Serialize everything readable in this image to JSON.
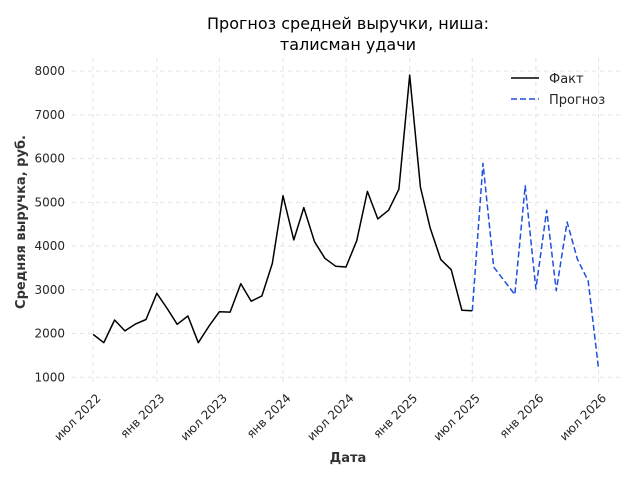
{
  "chart_data": {
    "type": "line",
    "title_lines": [
      "Прогноз средней выручки, ниша:",
      "талисман удачи"
    ],
    "xlabel": "Дата",
    "ylabel": "Средняя выручка, руб.",
    "x_ticks": [
      {
        "date": "2022-07-01",
        "label": "июл 2022"
      },
      {
        "date": "2023-01-01",
        "label": "янв 2023"
      },
      {
        "date": "2023-07-01",
        "label": "июл 2023"
      },
      {
        "date": "2024-01-01",
        "label": "янв 2024"
      },
      {
        "date": "2024-07-01",
        "label": "июл 2024"
      },
      {
        "date": "2025-01-01",
        "label": "янв 2025"
      },
      {
        "date": "2025-07-01",
        "label": "июл 2025"
      },
      {
        "date": "2026-01-01",
        "label": "янв 2026"
      },
      {
        "date": "2026-07-01",
        "label": "июл 2026"
      }
    ],
    "y_ticks": [
      1000,
      2000,
      3000,
      4000,
      5000,
      6000,
      7000,
      8000
    ],
    "xlim": [
      "2022-05-01",
      "2026-09-01"
    ],
    "ylim": [
      800,
      8300
    ],
    "grid": true,
    "legend_position": "top-right",
    "series": [
      {
        "name": "Факт",
        "color": "#000000",
        "style": "solid",
        "points": [
          [
            "2022-07-01",
            1980
          ],
          [
            "2022-08-01",
            1790
          ],
          [
            "2022-09-01",
            2310
          ],
          [
            "2022-10-01",
            2060
          ],
          [
            "2022-11-01",
            2220
          ],
          [
            "2022-12-01",
            2320
          ],
          [
            "2023-01-01",
            2920
          ],
          [
            "2023-02-01",
            2560
          ],
          [
            "2023-03-01",
            2210
          ],
          [
            "2023-04-01",
            2400
          ],
          [
            "2023-05-01",
            1790
          ],
          [
            "2023-06-01",
            2170
          ],
          [
            "2023-07-01",
            2500
          ],
          [
            "2023-08-01",
            2490
          ],
          [
            "2023-09-01",
            3140
          ],
          [
            "2023-10-01",
            2740
          ],
          [
            "2023-11-01",
            2860
          ],
          [
            "2023-12-01",
            3600
          ],
          [
            "2024-01-01",
            5150
          ],
          [
            "2024-02-01",
            4140
          ],
          [
            "2024-03-01",
            4880
          ],
          [
            "2024-04-01",
            4100
          ],
          [
            "2024-05-01",
            3720
          ],
          [
            "2024-06-01",
            3540
          ],
          [
            "2024-07-01",
            3520
          ],
          [
            "2024-08-01",
            4120
          ],
          [
            "2024-09-01",
            5250
          ],
          [
            "2024-10-01",
            4620
          ],
          [
            "2024-11-01",
            4820
          ],
          [
            "2024-12-01",
            5300
          ],
          [
            "2025-01-01",
            7910
          ],
          [
            "2025-02-01",
            5350
          ],
          [
            "2025-03-01",
            4420
          ],
          [
            "2025-04-01",
            3690
          ],
          [
            "2025-05-01",
            3460
          ],
          [
            "2025-06-01",
            2530
          ],
          [
            "2025-07-01",
            2520
          ]
        ]
      },
      {
        "name": "Прогноз",
        "color": "#1f4fe0",
        "style": "dashed",
        "points": [
          [
            "2025-07-01",
            2520
          ],
          [
            "2025-08-01",
            5890
          ],
          [
            "2025-09-01",
            3520
          ],
          [
            "2025-10-01",
            3210
          ],
          [
            "2025-11-01",
            2890
          ],
          [
            "2025-12-01",
            5380
          ],
          [
            "2026-01-01",
            3020
          ],
          [
            "2026-02-01",
            4820
          ],
          [
            "2026-03-01",
            2980
          ],
          [
            "2026-04-01",
            4550
          ],
          [
            "2026-05-01",
            3700
          ],
          [
            "2026-06-01",
            3200
          ],
          [
            "2026-07-01",
            1180
          ]
        ]
      }
    ]
  }
}
